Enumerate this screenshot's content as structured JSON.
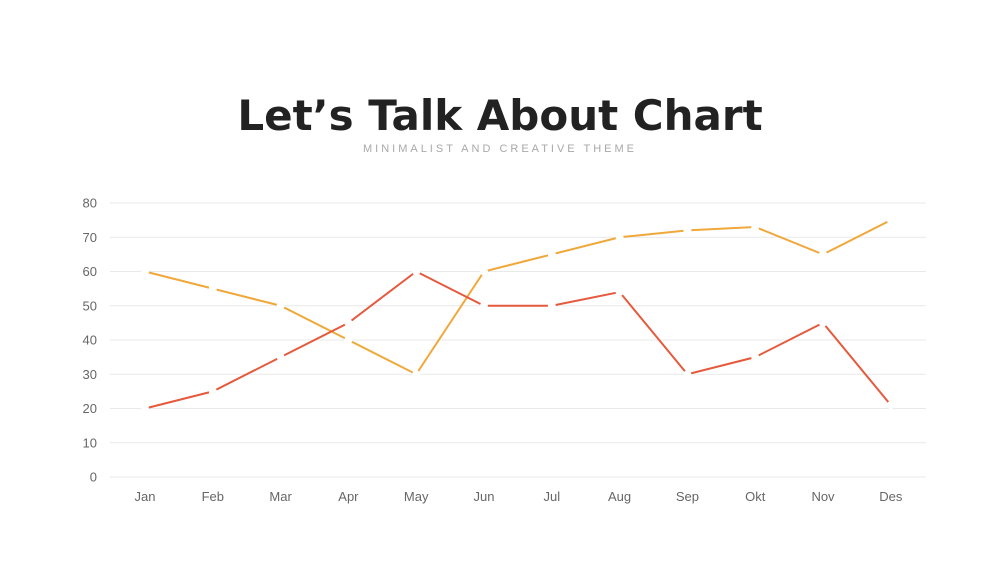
{
  "header": {
    "title": "Let’s Talk About Chart",
    "subtitle": "MINIMALIST AND CREATIVE THEME"
  },
  "chart_data": {
    "type": "line",
    "title": "",
    "xlabel": "",
    "ylabel": "",
    "categories": [
      "Jan",
      "Feb",
      "Mar",
      "Apr",
      "May",
      "Jun",
      "Jul",
      "Aug",
      "Sep",
      "Okt",
      "Nov",
      "Des"
    ],
    "ylim": [
      0,
      80
    ],
    "yticks": [
      0,
      10,
      20,
      30,
      40,
      50,
      60,
      70,
      80
    ],
    "grid": true,
    "legend": "none",
    "series": [
      {
        "color": "#f0a83a",
        "values": [
          60,
          55,
          50,
          40,
          30,
          60,
          65,
          70,
          72,
          73,
          65,
          75
        ]
      },
      {
        "color": "#e5593c",
        "values": [
          20,
          25,
          35,
          45,
          60,
          50,
          50,
          54,
          30,
          35,
          45,
          21
        ]
      }
    ]
  }
}
